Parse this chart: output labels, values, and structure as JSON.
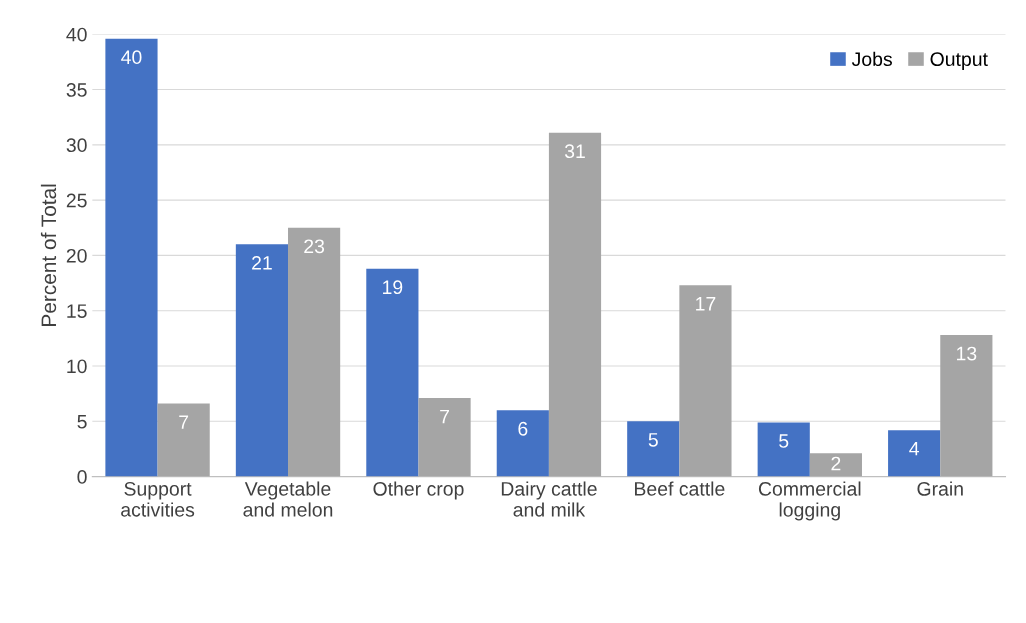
{
  "chart_data": {
    "type": "bar",
    "ylabel": "Percent of Total",
    "categories": [
      "Support\nactivities",
      "Vegetable\nand melon",
      "Other crop",
      "Dairy cattle\nand milk",
      "Beef cattle",
      "Commercial\nlogging",
      "Grain"
    ],
    "series": [
      {
        "name": "Jobs",
        "color": "#4472c4",
        "values": [
          39.6,
          21.0,
          18.8,
          6.0,
          5.0,
          4.9,
          4.2
        ],
        "value_labels": [
          "40",
          "21",
          "19",
          "6",
          "5",
          "5",
          "4"
        ]
      },
      {
        "name": "Output",
        "color": "#a5a5a5",
        "values": [
          6.6,
          22.5,
          7.1,
          31.1,
          17.3,
          2.1,
          12.8
        ],
        "value_labels": [
          "7",
          "23",
          "7",
          "31",
          "17",
          "2",
          "13"
        ]
      }
    ],
    "ylim": [
      0,
      40
    ],
    "yticks": [
      0,
      5,
      10,
      15,
      20,
      25,
      30,
      35,
      40
    ],
    "grid": "y",
    "legend": "top right"
  }
}
